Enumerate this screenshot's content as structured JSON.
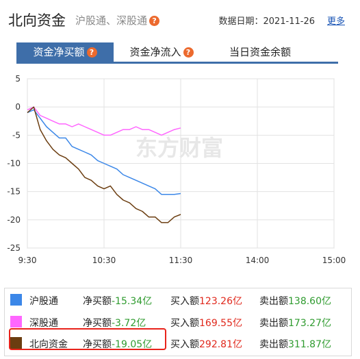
{
  "header": {
    "title": "北向资金",
    "subtitle": "沪股通、深股通",
    "date_label": "数据日期：2021-11-26",
    "more_label": "更多"
  },
  "tabs": [
    {
      "label": "资金净买额",
      "active": true
    },
    {
      "label": "资金净流入",
      "active": false
    },
    {
      "label": "当日资金余额",
      "active": false
    }
  ],
  "watermark": "东方财富",
  "chart_data": {
    "type": "line",
    "x_ticks": [
      "9:30",
      "10:30",
      "11:30",
      "14:00",
      "15:00"
    ],
    "y_ticks": [
      "5",
      "0",
      "-5",
      "-10",
      "-15",
      "-20",
      "-25"
    ],
    "ylim": [
      -25,
      5
    ],
    "grid": true,
    "series": [
      {
        "name": "沪股通",
        "color": "#3b87e8",
        "x": [
          "9:30",
          "9:35",
          "9:40",
          "9:45",
          "9:50",
          "9:55",
          "10:00",
          "10:05",
          "10:10",
          "10:15",
          "10:20",
          "10:25",
          "10:30",
          "10:35",
          "10:40",
          "10:45",
          "10:50",
          "10:55",
          "11:00",
          "11:05",
          "11:10",
          "11:15",
          "11:20",
          "11:25",
          "11:30"
        ],
        "values": [
          -1.0,
          -0.5,
          -2.0,
          -3.5,
          -4.5,
          -5.5,
          -5.5,
          -7.0,
          -7.5,
          -8.0,
          -8.5,
          -9.5,
          -10.0,
          -10.5,
          -11.0,
          -12.0,
          -12.5,
          -13.0,
          -13.5,
          -14.0,
          -14.5,
          -15.5,
          -15.5,
          -15.5,
          -15.34
        ]
      },
      {
        "name": "深股通",
        "color": "#ff66ff",
        "x": [
          "9:30",
          "9:35",
          "9:40",
          "9:45",
          "9:50",
          "9:55",
          "10:00",
          "10:05",
          "10:10",
          "10:15",
          "10:20",
          "10:25",
          "10:30",
          "10:35",
          "10:40",
          "10:45",
          "10:50",
          "10:55",
          "11:00",
          "11:05",
          "11:10",
          "11:15",
          "11:20",
          "11:25",
          "11:30"
        ],
        "values": [
          -0.5,
          0.0,
          -1.5,
          -2.0,
          -2.5,
          -3.0,
          -3.0,
          -3.5,
          -3.0,
          -3.5,
          -4.0,
          -4.5,
          -5.0,
          -5.0,
          -4.5,
          -4.0,
          -4.0,
          -3.5,
          -4.0,
          -4.0,
          -4.5,
          -5.0,
          -4.5,
          -4.0,
          -3.72
        ]
      },
      {
        "name": "北向资金",
        "color": "#6b3d10",
        "x": [
          "9:30",
          "9:35",
          "9:40",
          "9:45",
          "9:50",
          "9:55",
          "10:00",
          "10:05",
          "10:10",
          "10:15",
          "10:20",
          "10:25",
          "10:30",
          "10:35",
          "10:40",
          "10:45",
          "10:50",
          "10:55",
          "11:00",
          "11:05",
          "11:10",
          "11:15",
          "11:20",
          "11:25",
          "11:30"
        ],
        "values": [
          -1.0,
          0.0,
          -4.0,
          -6.0,
          -7.5,
          -8.5,
          -9.0,
          -10.0,
          -11.0,
          -12.5,
          -13.0,
          -14.0,
          -14.5,
          -14.0,
          -15.5,
          -16.5,
          -17.0,
          -18.0,
          -18.5,
          -19.5,
          -19.5,
          -20.5,
          -20.5,
          -19.5,
          -19.05
        ]
      }
    ]
  },
  "legend": [
    {
      "name": "沪股通",
      "color": "#3b87e8",
      "net_label": "净买额",
      "net_value": "-15.34亿",
      "buy_label": "买入额",
      "buy_value": "123.26亿",
      "sell_label": "卖出额",
      "sell_value": "138.60亿"
    },
    {
      "name": "深股通",
      "color": "#ff66ff",
      "net_label": "净买额",
      "net_value": "-3.72亿",
      "buy_label": "买入额",
      "buy_value": "169.55亿",
      "sell_label": "卖出额",
      "sell_value": "173.27亿"
    },
    {
      "name": "北向资金",
      "color": "#6b3d10",
      "net_label": "净买额",
      "net_value": "-19.05亿",
      "buy_label": "买入额",
      "buy_value": "292.81亿",
      "sell_label": "卖出额",
      "sell_value": "311.87亿"
    }
  ]
}
